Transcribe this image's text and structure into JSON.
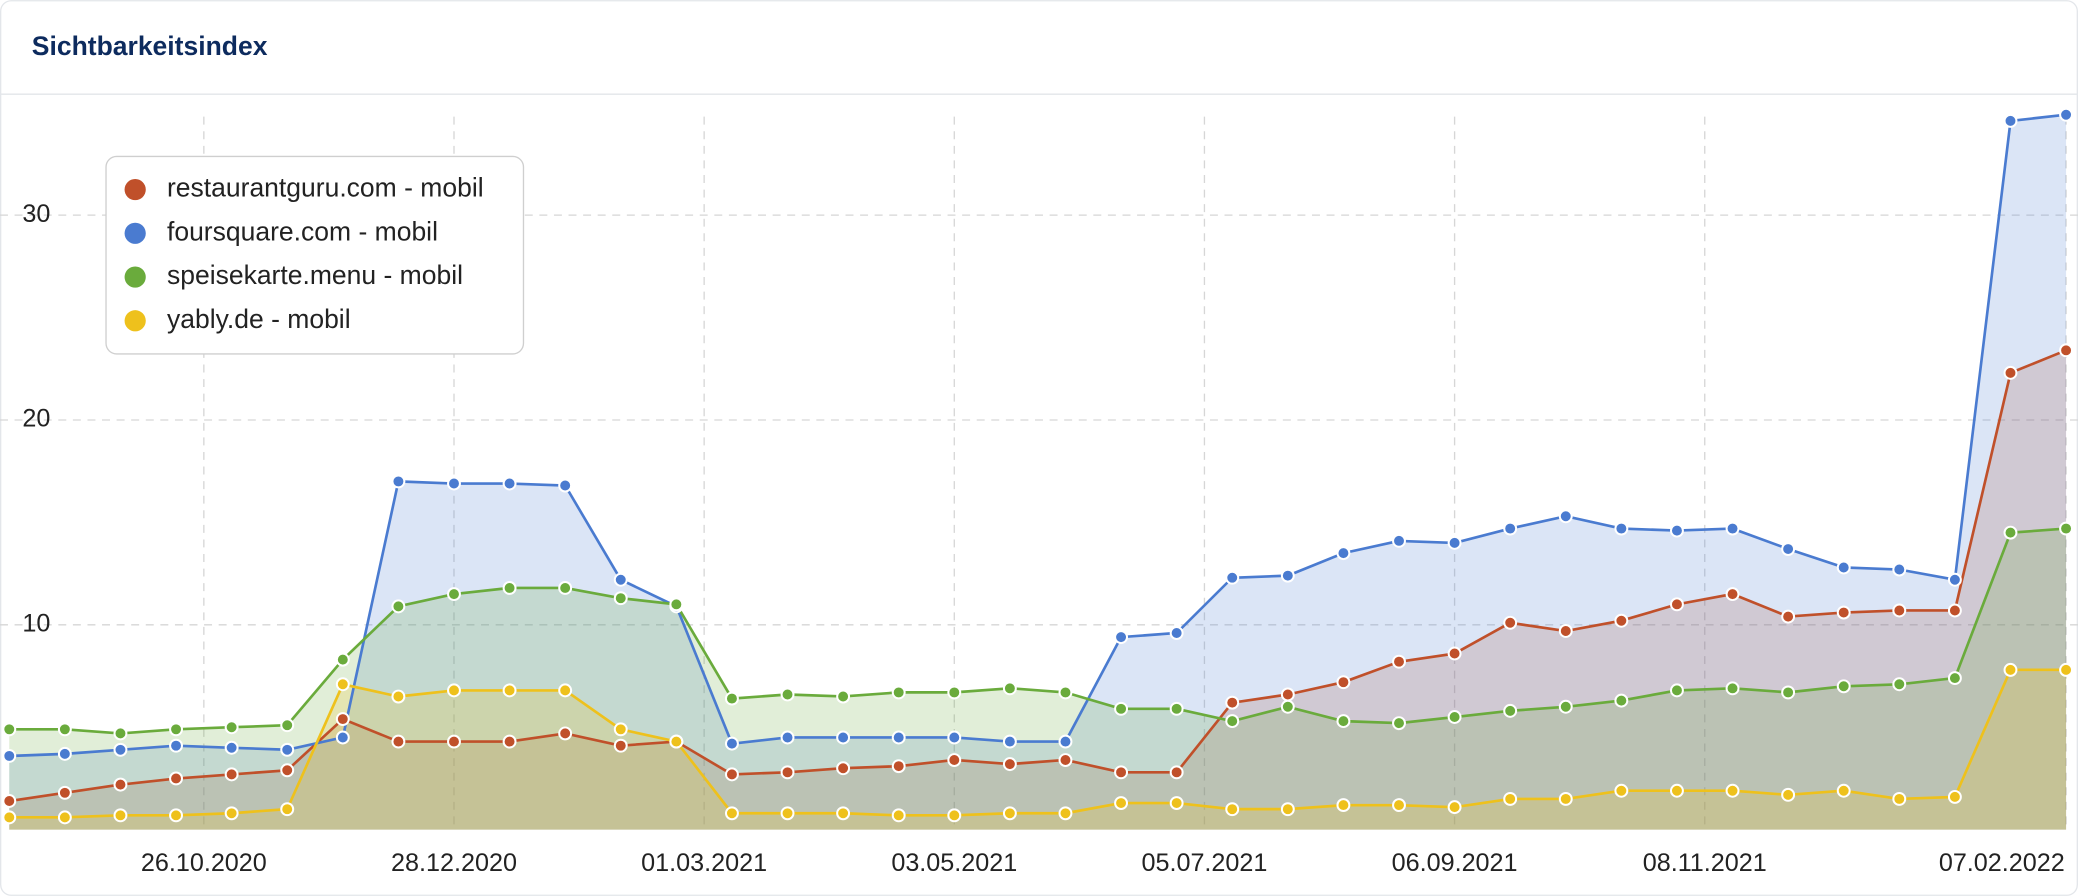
{
  "chart_data": {
    "type": "area-line",
    "title": "Sichtbarkeitsindex",
    "x": [
      "07.09.2020",
      "21.09.2020",
      "05.10.2020",
      "19.10.2020",
      "02.11.2020",
      "16.11.2020",
      "30.11.2020",
      "14.12.2020",
      "28.12.2020",
      "11.01.2021",
      "25.01.2021",
      "08.02.2021",
      "22.02.2021",
      "08.03.2021",
      "22.03.2021",
      "05.04.2021",
      "19.04.2021",
      "03.05.2021",
      "17.05.2021",
      "31.05.2021",
      "14.06.2021",
      "28.06.2021",
      "12.07.2021",
      "26.07.2021",
      "09.08.2021",
      "23.08.2021",
      "06.09.2021",
      "20.09.2021",
      "04.10.2021",
      "18.10.2021",
      "01.11.2021",
      "15.11.2021",
      "29.11.2021",
      "13.12.2021",
      "27.12.2021",
      "10.01.2022",
      "24.01.2022",
      "07.02.2022"
    ],
    "xlim": [
      "07.09.2020",
      "07.02.2022"
    ],
    "xticks": [
      "26.10.2020",
      "28.12.2020",
      "01.03.2021",
      "03.05.2021",
      "05.07.2021",
      "06.09.2021",
      "08.11.2021",
      "07.02.2022"
    ],
    "ylim": [
      0,
      35
    ],
    "yticks": [
      10,
      20,
      30
    ],
    "grid": true,
    "legend": "upper left",
    "series": [
      {
        "name": "restaurantguru.com - mobil",
        "color": "#c0502a",
        "values": [
          1.4,
          1.8,
          2.2,
          2.5,
          2.7,
          2.9,
          5.4,
          4.3,
          4.3,
          4.3,
          4.7,
          4.1,
          4.3,
          2.7,
          2.8,
          3.0,
          3.1,
          3.4,
          3.2,
          3.4,
          2.8,
          2.8,
          6.2,
          6.6,
          7.2,
          8.2,
          8.6,
          10.1,
          9.7,
          10.2,
          11.0,
          11.5,
          10.4,
          10.6,
          10.7,
          10.7,
          22.3,
          23.4
        ]
      },
      {
        "name": "foursquare.com - mobil",
        "color": "#4a7bd0",
        "values": [
          3.6,
          3.7,
          3.9,
          4.1,
          4.0,
          3.9,
          4.5,
          17.0,
          16.9,
          16.9,
          16.8,
          12.2,
          10.9,
          4.2,
          4.5,
          4.5,
          4.5,
          4.5,
          4.3,
          4.3,
          9.4,
          9.6,
          12.3,
          12.4,
          13.5,
          14.1,
          14.0,
          14.7,
          15.3,
          14.7,
          14.6,
          14.7,
          13.7,
          12.8,
          12.7,
          12.2,
          34.6,
          34.9
        ]
      },
      {
        "name": "speisekarte.menu - mobil",
        "color": "#6aab3c",
        "values": [
          4.9,
          4.9,
          4.7,
          4.9,
          5.0,
          5.1,
          8.3,
          10.9,
          11.5,
          11.8,
          11.8,
          11.3,
          11.0,
          6.4,
          6.6,
          6.5,
          6.7,
          6.7,
          6.9,
          6.7,
          5.9,
          5.9,
          5.3,
          6.0,
          5.3,
          5.2,
          5.5,
          5.8,
          6.0,
          6.3,
          6.8,
          6.9,
          6.7,
          7.0,
          7.1,
          7.4,
          14.5,
          14.7
        ]
      },
      {
        "name": "yably.de - mobil",
        "color": "#eec11c",
        "values": [
          0.6,
          0.6,
          0.7,
          0.7,
          0.8,
          1.0,
          7.1,
          6.5,
          6.8,
          6.8,
          6.8,
          4.9,
          4.3,
          0.8,
          0.8,
          0.8,
          0.7,
          0.7,
          0.8,
          0.8,
          1.3,
          1.3,
          1.0,
          1.0,
          1.2,
          1.2,
          1.1,
          1.5,
          1.5,
          1.9,
          1.9,
          1.9,
          1.7,
          1.9,
          1.5,
          1.6,
          7.8,
          7.8
        ]
      }
    ]
  }
}
